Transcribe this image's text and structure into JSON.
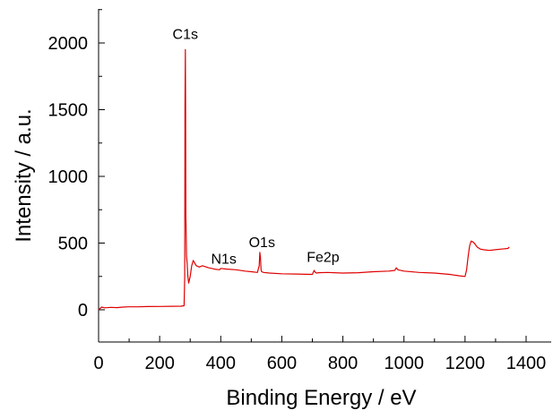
{
  "chart_data": {
    "type": "line",
    "title": "",
    "xlabel": "Binding Energy / eV",
    "ylabel": "Intensity / a.u.",
    "xlim": [
      0,
      1420
    ],
    "ylim": [
      -250,
      2250
    ],
    "xticks": [
      0,
      200,
      400,
      600,
      800,
      1000,
      1200,
      1400
    ],
    "yticks": [
      0,
      500,
      1000,
      1500,
      2000
    ],
    "grid": false,
    "legend": "none",
    "series_color": "#e00000",
    "series": [
      {
        "x": [
          0,
          10,
          20,
          40,
          60,
          80,
          100,
          130,
          160,
          200,
          240,
          270,
          280,
          282,
          283,
          284,
          285,
          286,
          288,
          290,
          292,
          295,
          300,
          305,
          310,
          315,
          320,
          330,
          340,
          360,
          380,
          396,
          400,
          420,
          450,
          480,
          500,
          520,
          526,
          528,
          530,
          532,
          534,
          540,
          560,
          600,
          650,
          700,
          706,
          710,
          714,
          720,
          750,
          800,
          850,
          900,
          950,
          970,
          975,
          980,
          1000,
          1050,
          1100,
          1150,
          1180,
          1200,
          1205,
          1210,
          1215,
          1220,
          1225,
          1230,
          1240,
          1250,
          1260,
          1280,
          1300,
          1320,
          1340,
          1345
        ],
        "y": [
          0,
          20,
          15,
          18,
          16,
          20,
          22,
          22,
          24,
          25,
          26,
          27,
          30,
          250,
          1500,
          1950,
          1500,
          700,
          400,
          350,
          260,
          200,
          250,
          330,
          370,
          350,
          330,
          320,
          330,
          315,
          305,
          300,
          310,
          305,
          300,
          290,
          285,
          280,
          330,
          430,
          390,
          300,
          285,
          280,
          275,
          270,
          268,
          265,
          295,
          280,
          275,
          278,
          280,
          275,
          278,
          285,
          290,
          295,
          315,
          300,
          290,
          280,
          275,
          265,
          255,
          250,
          300,
          400,
          480,
          515,
          510,
          500,
          470,
          455,
          450,
          445,
          450,
          455,
          460,
          470
        ]
      }
    ],
    "annotations": [
      {
        "text": "C1s",
        "x": 284,
        "y": 2030
      },
      {
        "text": "N1s",
        "x": 410,
        "y": 345
      },
      {
        "text": "O1s",
        "x": 535,
        "y": 470
      },
      {
        "text": "Fe2p",
        "x": 735,
        "y": 360
      }
    ]
  }
}
